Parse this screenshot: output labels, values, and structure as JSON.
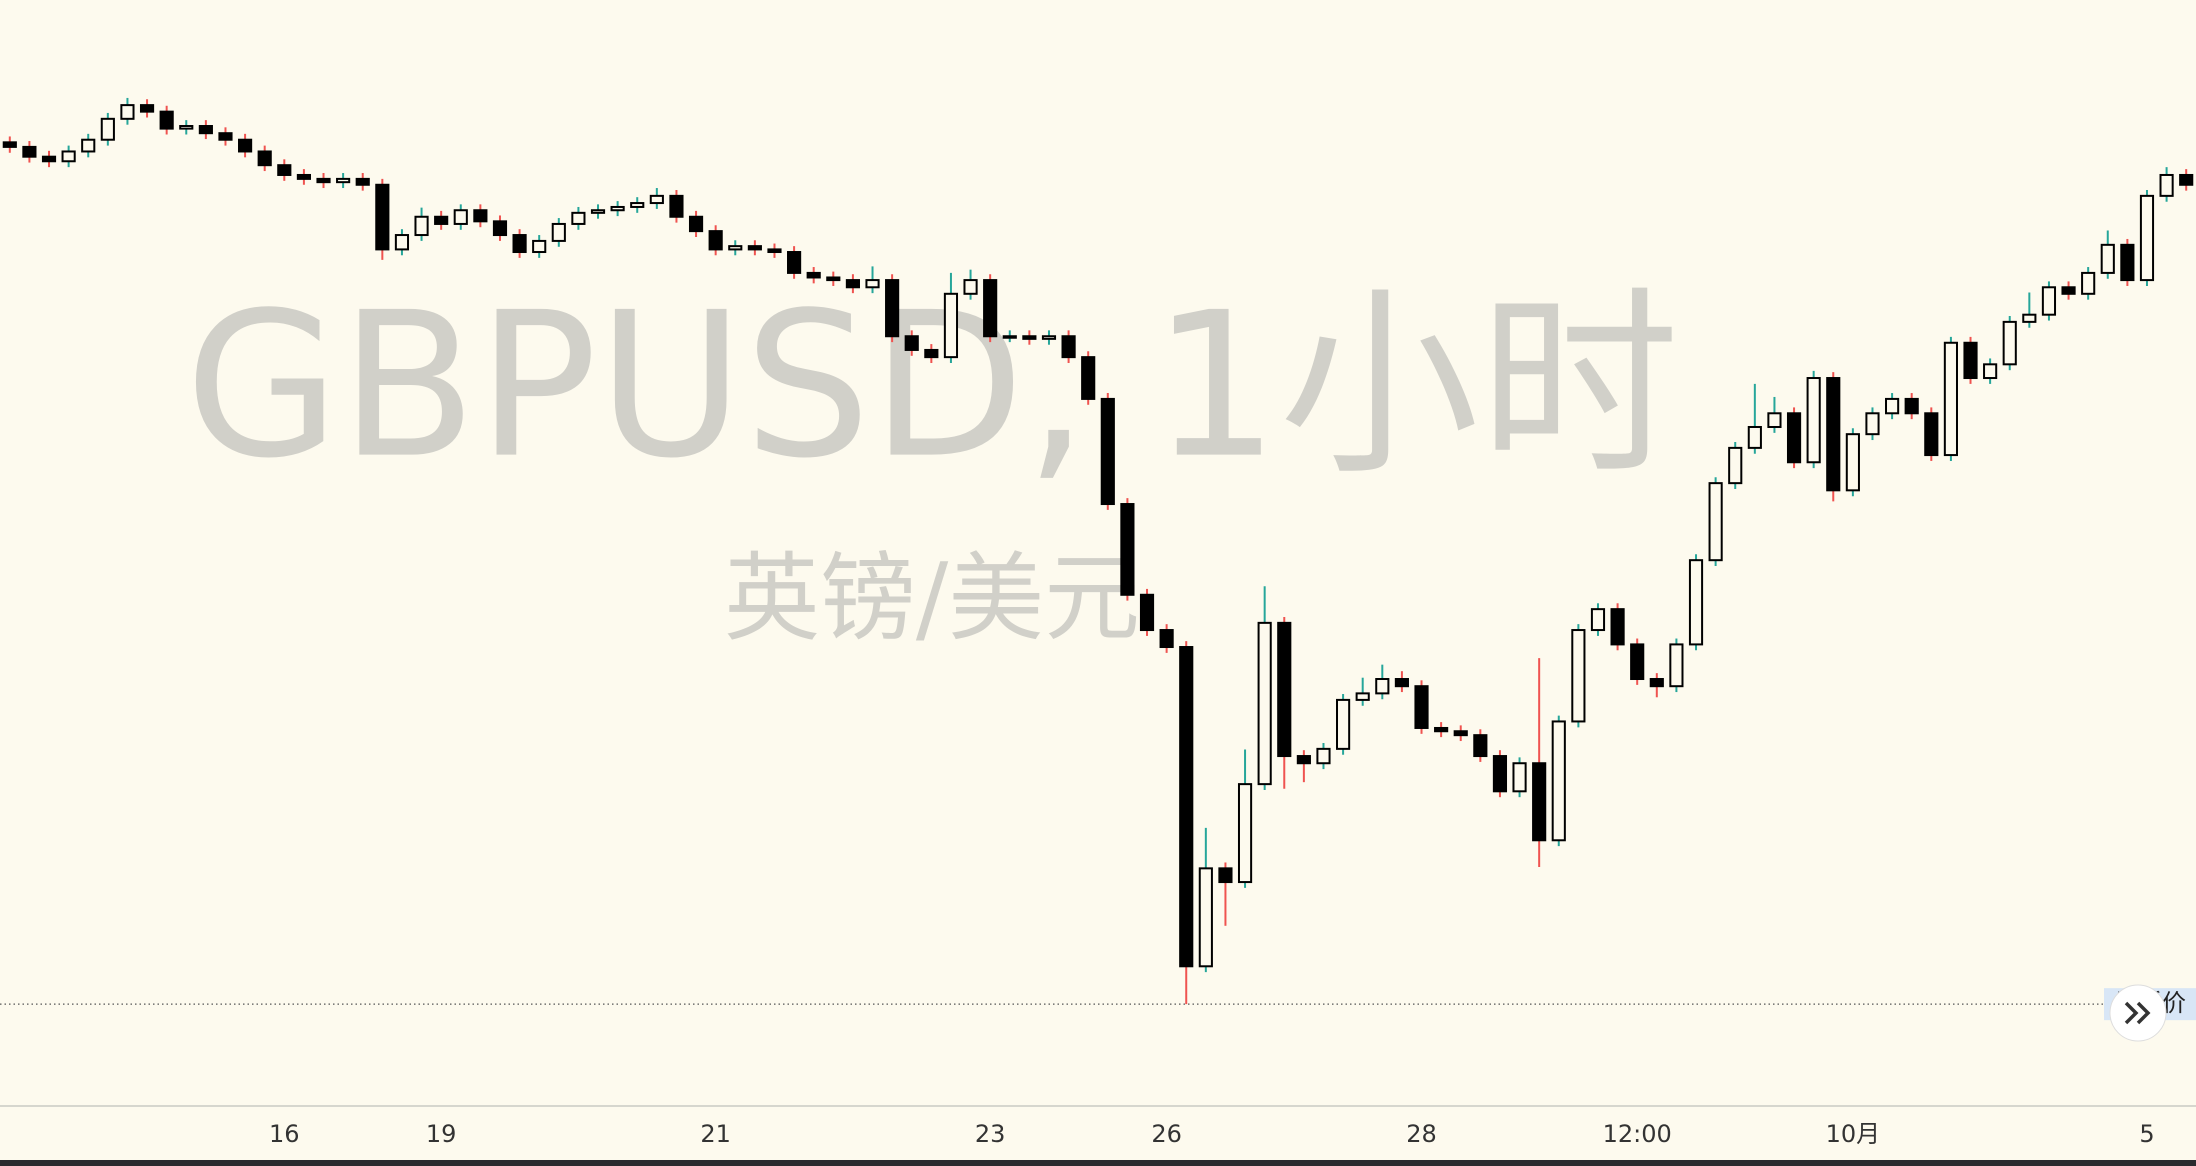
{
  "chart_data": {
    "type": "candlestick",
    "watermark": {
      "title": "GBPUSD, 1小时",
      "subtitle": "英镑/美元"
    },
    "categories": [
      null,
      null,
      null,
      null,
      null,
      null,
      null,
      null,
      null,
      null,
      null,
      null,
      null,
      null,
      "16",
      null,
      null,
      null,
      null,
      null,
      null,
      null,
      "19",
      null,
      null,
      null,
      null,
      null,
      null,
      null,
      null,
      null,
      null,
      null,
      null,
      null,
      "21",
      null,
      null,
      null,
      null,
      null,
      null,
      null,
      null,
      null,
      null,
      null,
      null,
      null,
      "23",
      null,
      null,
      null,
      null,
      null,
      null,
      null,
      null,
      "26",
      null,
      null,
      null,
      null,
      null,
      null,
      null,
      null,
      null,
      null,
      null,
      null,
      "28",
      null,
      null,
      null,
      null,
      null,
      null,
      null,
      null,
      null,
      null,
      "12:00",
      null,
      null,
      null,
      null,
      null,
      null,
      null,
      null,
      null,
      null,
      "10月",
      null,
      null,
      null,
      null,
      null,
      null,
      null,
      null,
      null,
      null,
      null,
      null,
      null,
      null,
      "5",
      null,
      null
    ],
    "open": [
      1.167,
      1.1663,
      1.1648,
      1.1641,
      1.1656,
      1.1674,
      1.1706,
      1.1727,
      1.1717,
      1.1691,
      1.1695,
      1.1684,
      1.1674,
      1.1656,
      1.1635,
      1.162,
      1.1614,
      1.1609,
      1.1614,
      1.1605,
      1.1506,
      1.1528,
      1.1556,
      1.1545,
      1.1566,
      1.1549,
      1.1528,
      1.1502,
      1.1519,
      1.1545,
      1.1562,
      1.1566,
      1.1571,
      1.1577,
      1.1588,
      1.1556,
      1.1534,
      1.1506,
      1.1511,
      1.1506,
      1.1502,
      1.147,
      1.1463,
      1.1459,
      1.1448,
      1.1459,
      1.1373,
      1.1352,
      1.1341,
      1.1438,
      1.1459,
      1.1373,
      1.1373,
      1.1369,
      1.1373,
      1.1341,
      1.1277,
      1.1116,
      1.0977,
      1.0923,
      1.0897,
      1.0408,
      1.0558,
      1.0537,
      1.0687,
      1.0934,
      1.073,
      1.0719,
      1.0741,
      1.0816,
      1.0826,
      1.0848,
      1.0837,
      1.0773,
      1.0768,
      1.0762,
      1.073,
      1.0676,
      1.0719,
      1.0601,
      1.0783,
      1.0923,
      1.0955,
      1.0901,
      1.0848,
      1.0837,
      1.0901,
      1.103,
      1.1148,
      1.1202,
      1.1234,
      1.1255,
      1.118,
      1.1309,
      1.1137,
      1.1223,
      1.1255,
      1.1277,
      1.1255,
      1.1191,
      1.1363,
      1.1309,
      1.133,
      1.1395,
      1.1406,
      1.1448,
      1.1438,
      1.147,
      1.1513,
      1.1459,
      1.1588,
      1.162
    ],
    "high": [
      1.1679,
      1.1672,
      1.1657,
      1.1665,
      1.1683,
      1.1715,
      1.1738,
      1.1736,
      1.1726,
      1.1704,
      1.1704,
      1.1693,
      1.1683,
      1.1665,
      1.1644,
      1.1629,
      1.1623,
      1.1623,
      1.1623,
      1.1614,
      1.1537,
      1.157,
      1.1565,
      1.1575,
      1.1575,
      1.1558,
      1.1537,
      1.1528,
      1.1554,
      1.1571,
      1.1575,
      1.158,
      1.1586,
      1.16,
      1.1597,
      1.1565,
      1.1543,
      1.152,
      1.152,
      1.1515,
      1.1511,
      1.1479,
      1.1472,
      1.1468,
      1.148,
      1.1468,
      1.1382,
      1.1361,
      1.147,
      1.1475,
      1.1468,
      1.1382,
      1.1382,
      1.1382,
      1.1382,
      1.135,
      1.1286,
      1.1125,
      1.0986,
      1.0932,
      1.0906,
      1.062,
      1.0567,
      1.074,
      1.099,
      1.0943,
      1.0739,
      1.075,
      1.0825,
      1.085,
      1.087,
      1.086,
      1.0846,
      1.0782,
      1.0777,
      1.0771,
      1.0739,
      1.0728,
      1.088,
      1.0792,
      1.0932,
      1.0964,
      1.0964,
      1.091,
      1.0857,
      1.091,
      1.1039,
      1.1157,
      1.1211,
      1.13,
      1.128,
      1.1264,
      1.132,
      1.1318,
      1.1232,
      1.1264,
      1.1286,
      1.1286,
      1.1264,
      1.1372,
      1.1372,
      1.1339,
      1.1404,
      1.144,
      1.1457,
      1.1457,
      1.1479,
      1.1535,
      1.1522,
      1.1597,
      1.1632,
      1.1629
    ],
    "low": [
      1.1654,
      1.1639,
      1.1632,
      1.1632,
      1.1647,
      1.1665,
      1.1697,
      1.1708,
      1.1682,
      1.1682,
      1.1675,
      1.1665,
      1.1647,
      1.1626,
      1.1611,
      1.1605,
      1.16,
      1.16,
      1.1596,
      1.149,
      1.1497,
      1.1519,
      1.1536,
      1.1536,
      1.154,
      1.1519,
      1.1493,
      1.1493,
      1.151,
      1.1536,
      1.1553,
      1.1557,
      1.1562,
      1.1568,
      1.1547,
      1.1525,
      1.1497,
      1.1497,
      1.1497,
      1.1493,
      1.1461,
      1.1454,
      1.145,
      1.1439,
      1.1439,
      1.1364,
      1.1343,
      1.1332,
      1.1332,
      1.1429,
      1.1364,
      1.1364,
      1.136,
      1.136,
      1.1332,
      1.1268,
      1.1107,
      1.0968,
      1.0914,
      1.0888,
      1.035,
      1.0399,
      1.047,
      1.0528,
      1.0678,
      1.068,
      1.069,
      1.071,
      1.0732,
      1.0807,
      1.0817,
      1.0828,
      1.0764,
      1.0759,
      1.0753,
      1.0721,
      1.0667,
      1.0667,
      1.056,
      1.0592,
      1.0774,
      1.0914,
      1.0892,
      1.0839,
      1.082,
      1.0828,
      1.0892,
      1.1021,
      1.1139,
      1.1193,
      1.1225,
      1.1171,
      1.1171,
      1.112,
      1.1128,
      1.1214,
      1.1246,
      1.1246,
      1.1182,
      1.1182,
      1.13,
      1.13,
      1.1321,
      1.1386,
      1.1397,
      1.1429,
      1.1429,
      1.1461,
      1.145,
      1.145,
      1.1579,
      1.1596
    ],
    "close": [
      1.1663,
      1.1648,
      1.1641,
      1.1656,
      1.1674,
      1.1706,
      1.1727,
      1.1717,
      1.1691,
      1.1695,
      1.1684,
      1.1674,
      1.1656,
      1.1635,
      1.162,
      1.1614,
      1.1609,
      1.1614,
      1.1605,
      1.1506,
      1.1528,
      1.1556,
      1.1545,
      1.1566,
      1.1549,
      1.1528,
      1.1502,
      1.1519,
      1.1545,
      1.1562,
      1.1566,
      1.1571,
      1.1577,
      1.1588,
      1.1556,
      1.1534,
      1.1506,
      1.1511,
      1.1506,
      1.1502,
      1.147,
      1.1463,
      1.1459,
      1.1448,
      1.1459,
      1.1373,
      1.1352,
      1.1341,
      1.1438,
      1.1459,
      1.1373,
      1.1373,
      1.1369,
      1.1373,
      1.1341,
      1.1277,
      1.1116,
      1.0977,
      1.0923,
      1.0897,
      1.0408,
      1.0558,
      1.0537,
      1.0687,
      1.0934,
      1.073,
      1.0719,
      1.0741,
      1.0816,
      1.0826,
      1.0848,
      1.0837,
      1.0773,
      1.0768,
      1.0762,
      1.073,
      1.0676,
      1.0719,
      1.0601,
      1.0783,
      1.0923,
      1.0955,
      1.0901,
      1.0848,
      1.0837,
      1.0901,
      1.103,
      1.1148,
      1.1202,
      1.1234,
      1.1255,
      1.118,
      1.1309,
      1.1137,
      1.1223,
      1.1255,
      1.1277,
      1.1255,
      1.1191,
      1.1363,
      1.1309,
      1.133,
      1.1395,
      1.1406,
      1.1448,
      1.1438,
      1.147,
      1.1513,
      1.1459,
      1.1588,
      1.162,
      1.1605
    ],
    "ylim": [
      1.0194,
      1.1888
    ],
    "colors": {
      "up_body": "#fdfaee",
      "down_body": "#000000",
      "outline": "#000000",
      "up_wick": "#26a69a",
      "down_wick": "#ef5350"
    },
    "annotations": [
      {
        "label": "最低价",
        "value": 1.035
      }
    ]
  }
}
